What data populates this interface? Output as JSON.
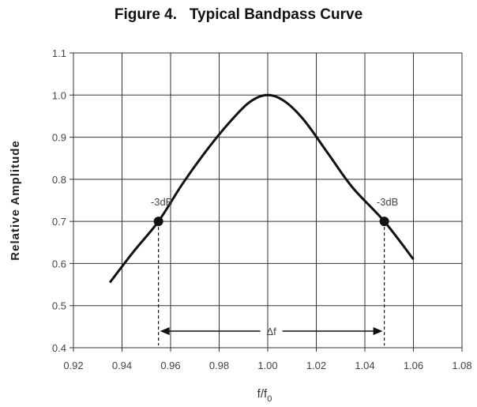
{
  "chart_data": {
    "type": "line",
    "title": "Figure 4.   Typical Bandpass Curve",
    "xlabel_main": "f/f",
    "xlabel_sub": "0",
    "ylabel": "Relative  Amplitude",
    "xlim": [
      0.92,
      1.08
    ],
    "ylim": [
      0.4,
      1.1
    ],
    "grid": true,
    "x_ticks": [
      0.92,
      0.94,
      0.96,
      0.98,
      1.0,
      1.02,
      1.04,
      1.06,
      1.08
    ],
    "x_tick_labels": [
      "0.92",
      "0.94",
      "0.96",
      "0.98",
      "1.00",
      "1.02",
      "1.04",
      "1.06",
      "1.08"
    ],
    "y_ticks": [
      0.4,
      0.5,
      0.6,
      0.7,
      0.8,
      0.9,
      1.0,
      1.1
    ],
    "y_tick_labels": [
      "0.4",
      "0.5",
      "0.6",
      "0.7",
      "0.8",
      "0.9",
      "1.0",
      "1.1"
    ],
    "series": [
      {
        "x": [
          0.935,
          0.945,
          0.955,
          0.965,
          0.975,
          0.985,
          0.993,
          1.0,
          1.007,
          1.015,
          1.025,
          1.035,
          1.048,
          1.06
        ],
        "y": [
          0.555,
          0.63,
          0.7,
          0.79,
          0.87,
          0.94,
          0.985,
          1.0,
          0.985,
          0.94,
          0.86,
          0.78,
          0.7,
          0.61
        ]
      }
    ],
    "points": [
      {
        "x": 0.955,
        "y": 0.7,
        "label": "-3dB"
      },
      {
        "x": 1.048,
        "y": 0.7,
        "label": "-3dB"
      }
    ],
    "bandwidth_label": "Δf",
    "colors": {
      "curve": "#111111",
      "grid": "#333333",
      "text": "#444444"
    }
  }
}
